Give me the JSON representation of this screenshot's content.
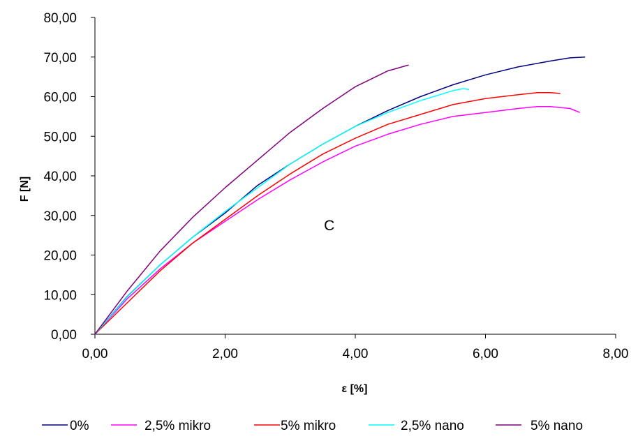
{
  "chart_data": {
    "type": "line",
    "title": "",
    "xlabel": "ε [%]",
    "ylabel": "F [N]",
    "xlim": [
      0,
      8
    ],
    "ylim": [
      0,
      80
    ],
    "xticks": [
      "0,00",
      "2,00",
      "4,00",
      "6,00",
      "8,00"
    ],
    "yticks": [
      "0,00",
      "10,00",
      "20,00",
      "30,00",
      "40,00",
      "50,00",
      "60,00",
      "70,00",
      "80,00"
    ],
    "grid": false,
    "legend_position": "bottom",
    "annotations": [
      {
        "text": "C",
        "x": 3.6,
        "y": 27.5
      }
    ],
    "series": [
      {
        "name": "0%",
        "color": "#000080",
        "x": [
          0,
          0.5,
          1.0,
          1.5,
          2.0,
          2.5,
          3.0,
          3.5,
          4.0,
          4.5,
          5.0,
          5.5,
          6.0,
          6.5,
          7.0,
          7.3,
          7.53
        ],
        "y": [
          0,
          9.6,
          17.5,
          24.5,
          30.6,
          37.6,
          43.0,
          48.0,
          52.5,
          56.5,
          60.0,
          63.0,
          65.5,
          67.5,
          69.0,
          69.8,
          70.0
        ]
      },
      {
        "name": "2,5% mikro",
        "color": "#FF00FF",
        "x": [
          0,
          0.5,
          1.0,
          1.5,
          2.0,
          2.5,
          3.0,
          3.5,
          4.0,
          4.5,
          5.0,
          5.5,
          6.0,
          6.5,
          6.8,
          7.0,
          7.3,
          7.45
        ],
        "y": [
          0,
          9.0,
          16.5,
          23.0,
          28.5,
          34.0,
          39.0,
          43.5,
          47.5,
          50.5,
          53.0,
          55.0,
          56.0,
          57.0,
          57.5,
          57.5,
          57.0,
          56.0
        ]
      },
      {
        "name": "5% mikro",
        "color": "#FF0000",
        "x": [
          0,
          0.5,
          1.0,
          1.5,
          2.0,
          2.5,
          3.0,
          3.5,
          4.0,
          4.5,
          5.0,
          5.5,
          6.0,
          6.5,
          6.8,
          7.0,
          7.15
        ],
        "y": [
          0,
          8.0,
          16.0,
          23.0,
          29.0,
          35.0,
          40.5,
          45.5,
          49.5,
          53.0,
          55.5,
          58.0,
          59.5,
          60.5,
          61.0,
          61.0,
          60.8
        ]
      },
      {
        "name": "2,5% nano",
        "color": "#00FFFF",
        "x": [
          0,
          0.5,
          1.0,
          1.5,
          2.0,
          2.5,
          3.0,
          3.5,
          4.0,
          4.5,
          5.0,
          5.5,
          5.65,
          5.75
        ],
        "y": [
          0,
          9.5,
          17.5,
          24.5,
          31.0,
          37.0,
          43.0,
          48.0,
          52.5,
          56.0,
          59.0,
          61.5,
          62.0,
          61.8
        ]
      },
      {
        "name": "5% nano",
        "color": "#800080",
        "x": [
          0,
          0.5,
          1.0,
          1.5,
          2.0,
          2.5,
          3.0,
          3.5,
          4.0,
          4.5,
          4.82
        ],
        "y": [
          0,
          11.0,
          21.0,
          29.5,
          37.0,
          44.0,
          51.0,
          57.0,
          62.5,
          66.5,
          68.0
        ]
      }
    ]
  }
}
